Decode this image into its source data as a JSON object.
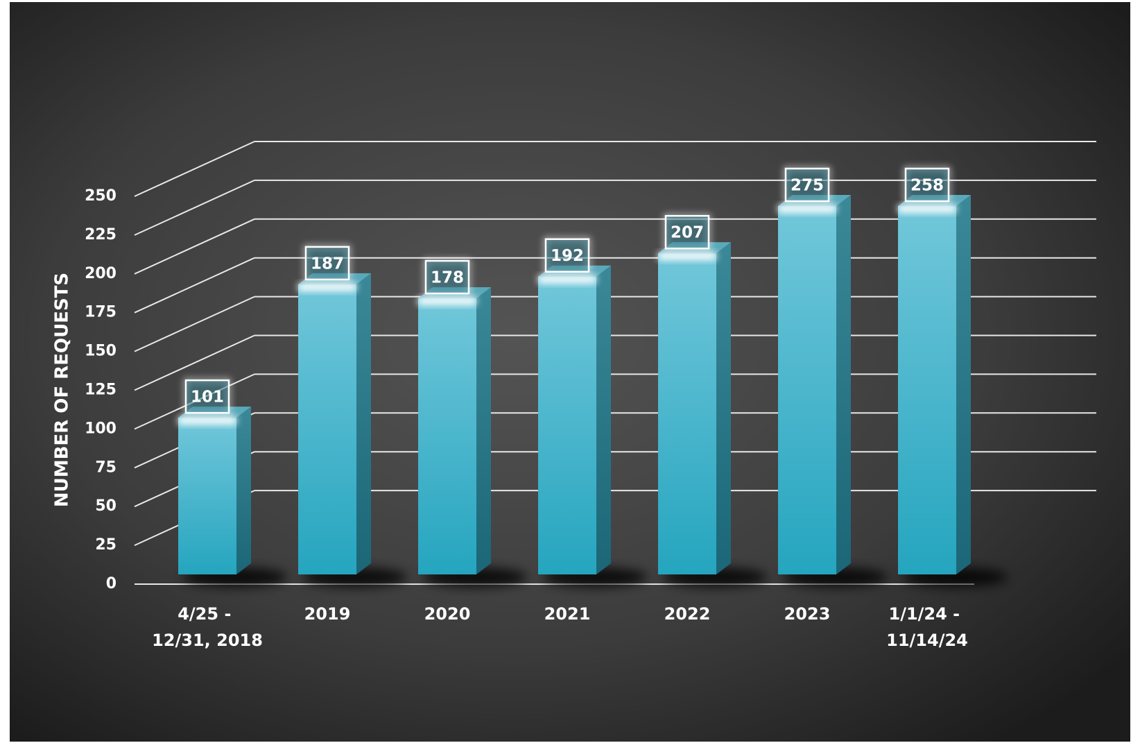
{
  "chart_data": {
    "type": "bar3d",
    "y_label": "NUMBER OF REQUESTS",
    "categories": [
      "4/25 - 12/31, 2018",
      "2019",
      "2020",
      "2021",
      "2022",
      "2023",
      "1/1/24 - 11/14/24"
    ],
    "values": [
      101,
      187,
      178,
      192,
      207,
      275,
      258
    ],
    "color": "#3fb3cc",
    "ylim": [
      0,
      250
    ],
    "yticks": [
      0,
      25,
      50,
      75,
      100,
      125,
      150,
      175,
      200,
      225,
      250
    ],
    "grid": true
  }
}
